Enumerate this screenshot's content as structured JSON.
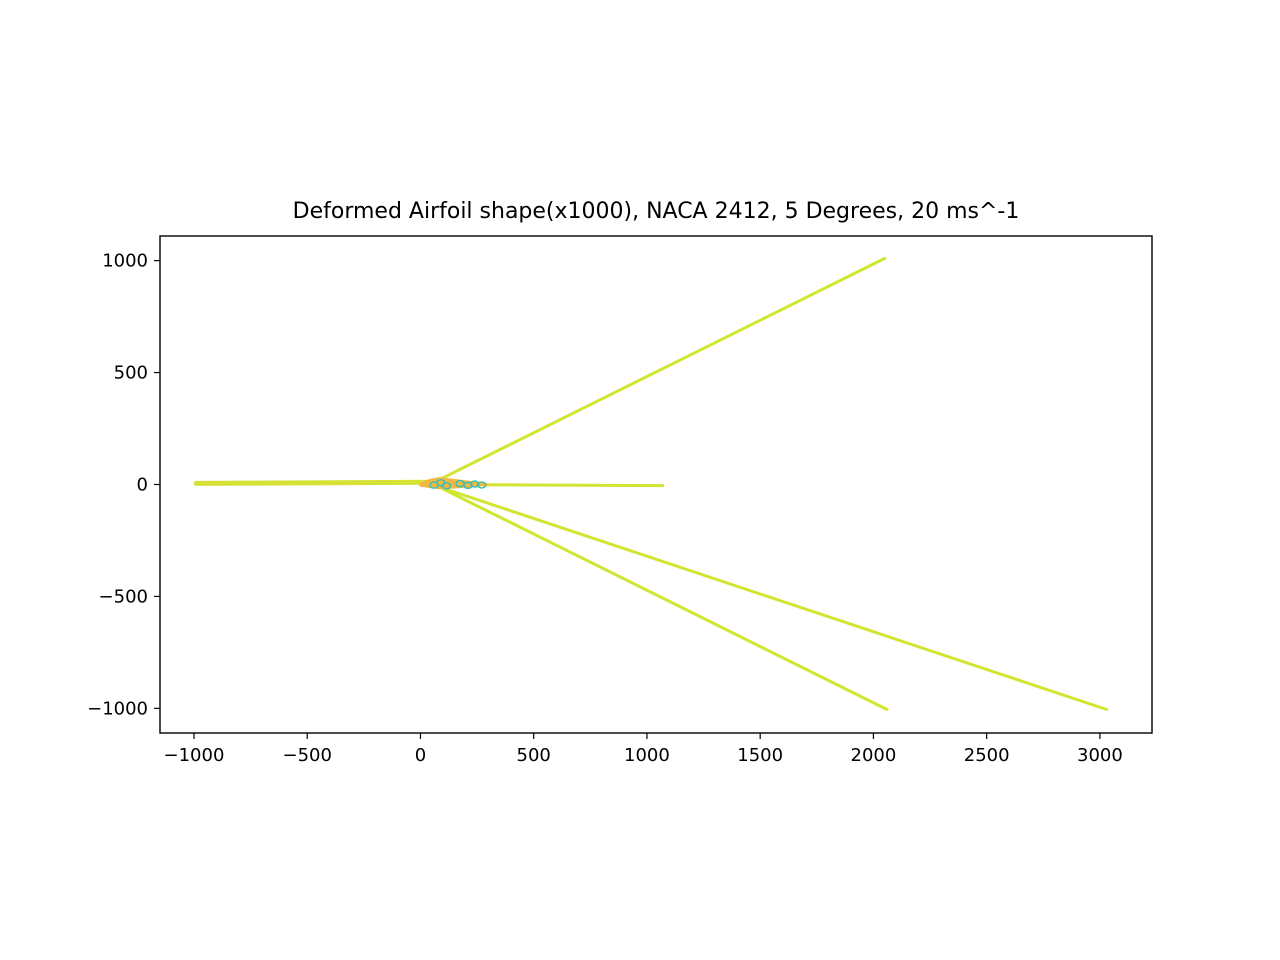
{
  "chart_data": {
    "type": "line",
    "title": "Deformed Airfoil shape(x1000), NACA 2412, 5 Degrees, 20 ms^-1",
    "xlabel": "",
    "ylabel": "",
    "xlim": [
      -1150,
      3230
    ],
    "ylim": [
      -1110,
      1110
    ],
    "xticks": [
      -1000,
      -500,
      0,
      500,
      1000,
      1500,
      2000,
      2500,
      3000
    ],
    "yticks": [
      -1000,
      -500,
      0,
      500,
      1000
    ],
    "xtick_labels": [
      "−1000",
      "−500",
      "0",
      "500",
      "1000",
      "1500",
      "2000",
      "2500",
      "3000"
    ],
    "ytick_labels": [
      "−1000",
      "−500",
      "0",
      "500",
      "1000"
    ],
    "grid": false,
    "legend": "none",
    "colors": {
      "spike": "#d2e530",
      "spike_thick": "#d6e236",
      "airfoil_fill": "#f2b841",
      "airfoil_detail": "#3fbfb0"
    },
    "series": [
      {
        "x": [
          80,
          2050
        ],
        "y": [
          20,
          1010
        ]
      },
      {
        "x": [
          -990,
          80
        ],
        "y": [
          5,
          10
        ]
      },
      {
        "x": [
          80,
          1070
        ],
        "y": [
          0,
          -5
        ]
      },
      {
        "x": [
          80,
          2060
        ],
        "y": [
          -10,
          -1005
        ]
      },
      {
        "x": [
          80,
          3030
        ],
        "y": [
          -10,
          -1005
        ]
      }
    ],
    "airfoil": {
      "upper": {
        "x": [
          0,
          40,
          80,
          140,
          200,
          260,
          300
        ],
        "y": [
          5,
          20,
          28,
          22,
          14,
          6,
          0
        ]
      },
      "lower": {
        "x": [
          0,
          40,
          80,
          140,
          200,
          260,
          300
        ],
        "y": [
          -5,
          -12,
          -16,
          -14,
          -10,
          -5,
          0
        ]
      },
      "detail_markers": {
        "x": [
          60,
          90,
          115,
          175,
          210,
          240,
          270
        ],
        "y": [
          -3,
          8,
          -6,
          4,
          -4,
          2,
          -2
        ]
      }
    }
  }
}
